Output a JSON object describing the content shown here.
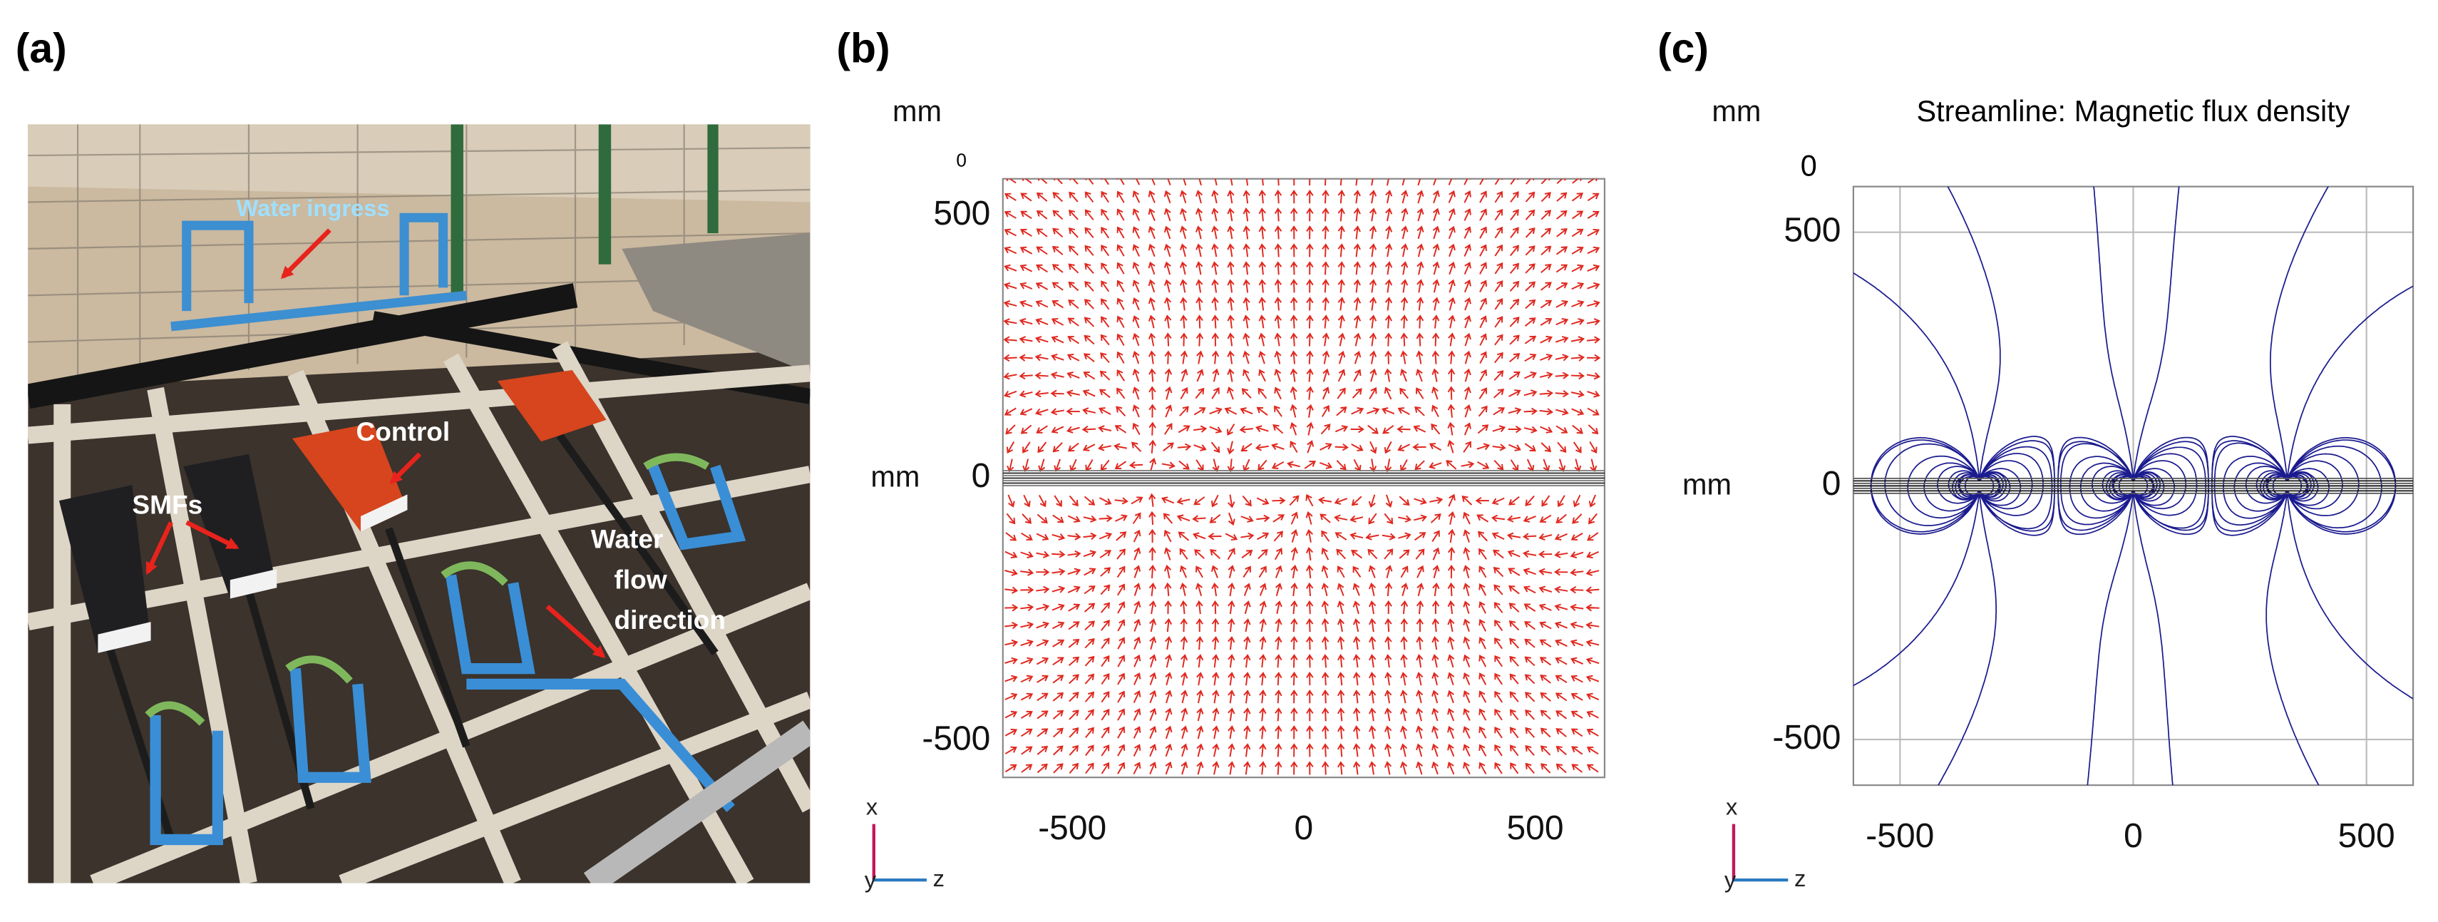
{
  "panel_labels": [
    "(a)",
    "(b)",
    "(c)"
  ],
  "photo": {
    "annotations": {
      "water_ingress": "Water ingress",
      "control": "Control",
      "smfs": "SMFs",
      "water_flow_direction": [
        "Water",
        "flow",
        "direction"
      ]
    }
  },
  "plot_b": {
    "y_unit_top": "mm",
    "y_unit_left": "mm",
    "corner_label": "0",
    "xlim": [
      -650,
      650
    ],
    "ylim": [
      -570,
      570
    ],
    "xticks": [
      -500,
      0,
      500
    ],
    "yticks": [
      -500,
      0,
      500
    ],
    "axes_triad": [
      "x",
      "y",
      "z"
    ]
  },
  "plot_c": {
    "title": "Streamline: Magnetic flux density",
    "y_unit_top": "mm",
    "y_unit_left": "mm",
    "corner_label": "0",
    "xlim": [
      -600,
      600
    ],
    "ylim": [
      -590,
      590
    ],
    "xticks": [
      -500,
      0,
      500
    ],
    "yticks": [
      -500,
      0,
      500
    ],
    "grid": true,
    "axes_triad": [
      "x",
      "y",
      "z"
    ]
  }
}
